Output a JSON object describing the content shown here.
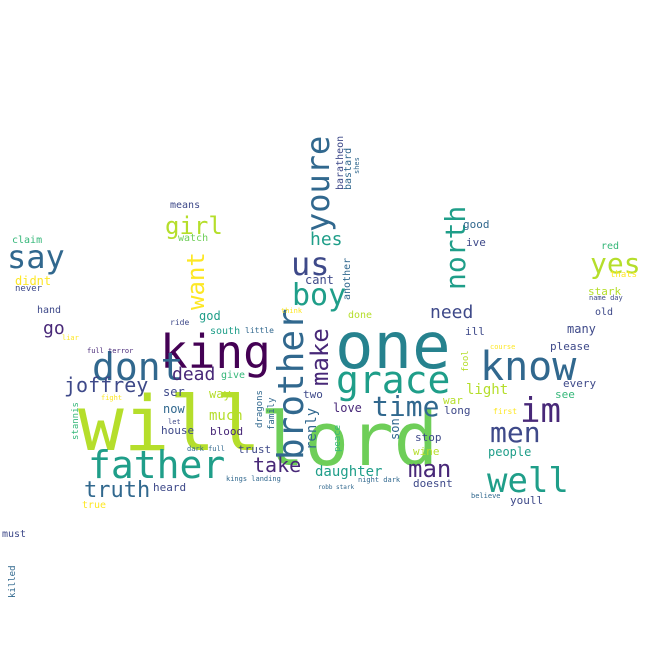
{
  "palette": {
    "dark_purple": "#440154",
    "indigo": "#482878",
    "navy_blue": "#3e4989",
    "steel_blue": "#31688e",
    "teal": "#26828e",
    "green_teal": "#1f9e89",
    "sea_green": "#35b779",
    "light_green": "#6ece58",
    "lime": "#b5de2b",
    "yellow": "#fde725"
  },
  "words": [
    {
      "text": "will"
    },
    {
      "text": "lord"
    },
    {
      "text": "one"
    },
    {
      "text": "king"
    },
    {
      "text": "know"
    },
    {
      "text": "dont"
    },
    {
      "text": "father"
    },
    {
      "text": "grace"
    },
    {
      "text": "brother"
    },
    {
      "text": "im"
    },
    {
      "text": "well"
    },
    {
      "text": "youre"
    },
    {
      "text": "us"
    },
    {
      "text": "boy"
    },
    {
      "text": "say"
    },
    {
      "text": "north"
    },
    {
      "text": "time"
    },
    {
      "text": "men"
    },
    {
      "text": "want"
    },
    {
      "text": "make"
    },
    {
      "text": "girl"
    },
    {
      "text": "yes"
    },
    {
      "text": "truth"
    },
    {
      "text": "man"
    },
    {
      "text": "take"
    },
    {
      "text": "joffrey"
    },
    {
      "text": "dead"
    },
    {
      "text": "need"
    },
    {
      "text": "hes"
    },
    {
      "text": "daughter"
    },
    {
      "text": "go"
    },
    {
      "text": "renly"
    },
    {
      "text": "light"
    },
    {
      "text": "people"
    },
    {
      "text": "much"
    },
    {
      "text": "love"
    },
    {
      "text": "son"
    },
    {
      "text": "now"
    },
    {
      "text": "ser"
    },
    {
      "text": "baratheon"
    },
    {
      "text": "bastard"
    },
    {
      "text": "shes"
    },
    {
      "text": "means"
    },
    {
      "text": "watch"
    },
    {
      "text": "cant"
    },
    {
      "text": "another"
    },
    {
      "text": "good"
    },
    {
      "text": "ive"
    },
    {
      "text": "claim"
    },
    {
      "text": "didnt"
    },
    {
      "text": "never"
    },
    {
      "text": "red"
    },
    {
      "text": "thats"
    },
    {
      "text": "stark"
    },
    {
      "text": "name day"
    },
    {
      "text": "old"
    },
    {
      "text": "hand"
    },
    {
      "text": "god"
    },
    {
      "text": "think"
    },
    {
      "text": "done"
    },
    {
      "text": "liar"
    },
    {
      "text": "ride"
    },
    {
      "text": "south"
    },
    {
      "text": "little"
    },
    {
      "text": "ill"
    },
    {
      "text": "many"
    },
    {
      "text": "full terror"
    },
    {
      "text": "please"
    },
    {
      "text": "course"
    },
    {
      "text": "fool"
    },
    {
      "text": "give"
    },
    {
      "text": "way"
    },
    {
      "text": "two"
    },
    {
      "text": "every"
    },
    {
      "text": "see"
    },
    {
      "text": "fight"
    },
    {
      "text": "war"
    },
    {
      "text": "long"
    },
    {
      "text": "first"
    },
    {
      "text": "stannis"
    },
    {
      "text": "let"
    },
    {
      "text": "house"
    },
    {
      "text": "blood"
    },
    {
      "text": "dragons"
    },
    {
      "text": "family"
    },
    {
      "text": "peace"
    },
    {
      "text": "stop"
    },
    {
      "text": "dark full"
    },
    {
      "text": "trust"
    },
    {
      "text": "wine"
    },
    {
      "text": "kings landing"
    },
    {
      "text": "robb stark"
    },
    {
      "text": "night dark"
    },
    {
      "text": "heard"
    },
    {
      "text": "doesnt"
    },
    {
      "text": "believe"
    },
    {
      "text": "youll"
    },
    {
      "text": "true"
    },
    {
      "text": "must"
    },
    {
      "text": "killed"
    }
  ]
}
